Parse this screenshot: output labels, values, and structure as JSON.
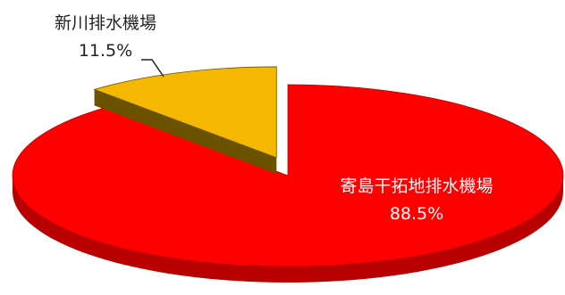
{
  "chart_data": {
    "type": "pie",
    "style": "3d-exploded",
    "slices": [
      {
        "label": "寄島干拓地排水機場",
        "value_text": "88.5%",
        "value": 88.5,
        "color": "#ff0000",
        "side_color": "#b80000"
      },
      {
        "label": "新川排水機場",
        "value_text": "11.5%",
        "value": 11.5,
        "color": "#f5b800",
        "side_color": "#6b5200",
        "exploded": true
      }
    ]
  }
}
